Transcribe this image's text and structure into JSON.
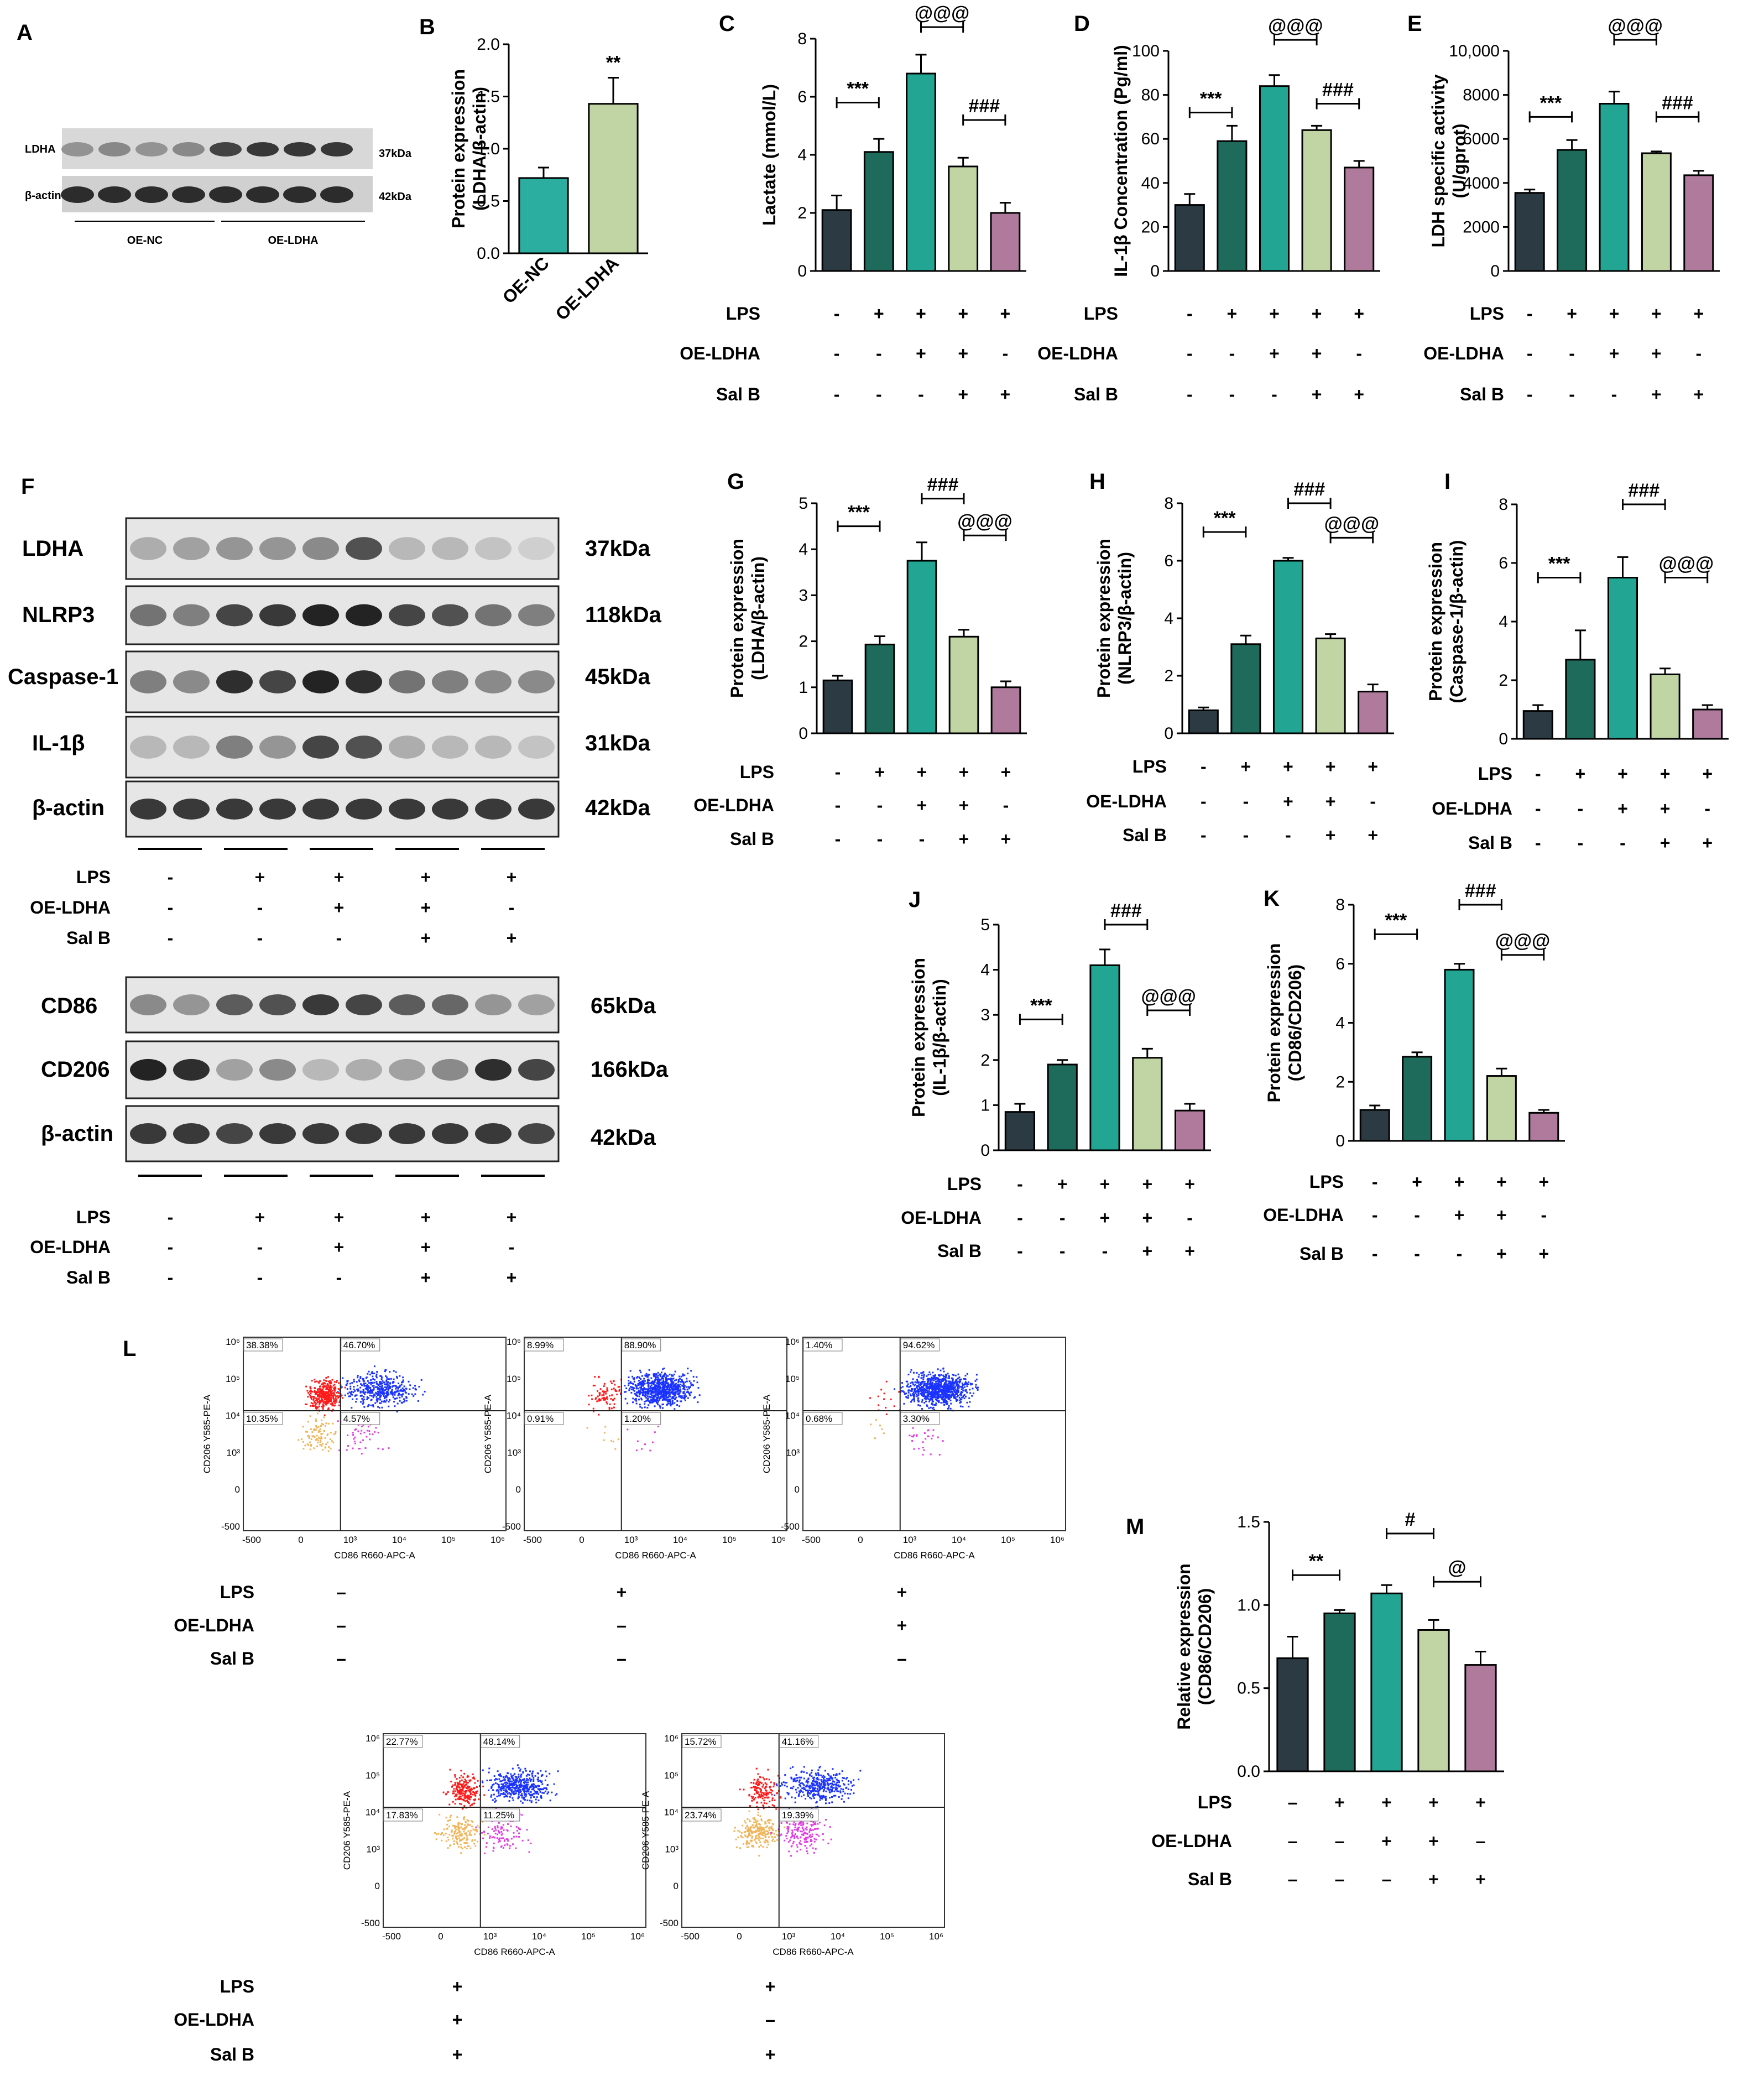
{
  "colors": {
    "group1": "#2b3a43",
    "group2": "#1e6b5c",
    "group3": "#22a592",
    "group4": "#c1d4a3",
    "group5": "#b07a9c",
    "bar_nc": "#2bada0",
    "bar_oe": "#c1d4a3",
    "red": "#ff1a1a",
    "blue": "#1a33ff",
    "orange": "#f0b45a",
    "magenta": "#e040e0"
  },
  "panel_a": {
    "letter": "A",
    "bands": [
      "LDHA",
      "β-actin"
    ],
    "sizes": [
      "37kDa",
      "42kDa"
    ],
    "groups": [
      "OE-NC",
      "OE-LDHA"
    ]
  },
  "panel_b": {
    "letter": "B",
    "significance": "**"
  },
  "panel_f": {
    "letter": "F",
    "bands_top": [
      "LDHA",
      "NLRP3",
      "Caspase-1",
      "IL-1β",
      "β-actin"
    ],
    "sizes_top": [
      "37kDa",
      "118kDa",
      "45kDa",
      "31kDa",
      "42kDa"
    ],
    "bands_bottom": [
      "CD86",
      "CD206",
      "β-actin"
    ],
    "sizes_bottom": [
      "65kDa",
      "166kDa",
      "42kDa"
    ]
  },
  "treatment_labels": [
    "LPS",
    "OE-LDHA",
    "Sal B"
  ],
  "treatment_matrix": [
    [
      "-",
      "+",
      "+",
      "+",
      "+"
    ],
    [
      "-",
      "-",
      "+",
      "+",
      "-"
    ],
    [
      "-",
      "-",
      "-",
      "+",
      "+"
    ]
  ],
  "treatment_matrix_dash": [
    [
      "–",
      "+",
      "+",
      "+",
      "+"
    ],
    [
      "–",
      "–",
      "+",
      "+",
      "–"
    ],
    [
      "–",
      "–",
      "–",
      "+",
      "+"
    ]
  ],
  "chart_data": [
    {
      "id": "B",
      "type": "bar",
      "categories": [
        "OE-NC",
        "OE-LDHA"
      ],
      "values": [
        0.72,
        1.43
      ],
      "errors": [
        0.1,
        0.25
      ],
      "ylabel": "Protein expression\n(LDHA/β-actin)",
      "ylim": [
        0,
        2.0
      ],
      "yticks": [
        "0.0",
        "0.5",
        "1.0",
        "1.5",
        "2.0"
      ],
      "significance": [
        "**"
      ]
    },
    {
      "id": "C",
      "type": "bar",
      "values": [
        2.1,
        4.1,
        6.8,
        3.6,
        2.0
      ],
      "errors": [
        0.5,
        0.45,
        0.65,
        0.3,
        0.35
      ],
      "ylabel": "Lactate (mmol/L)",
      "ylim": [
        0,
        8
      ],
      "yticks": [
        "0",
        "2",
        "4",
        "6",
        "8"
      ],
      "significance": [
        "***",
        "###",
        "@@@"
      ]
    },
    {
      "id": "D",
      "type": "bar",
      "values": [
        30,
        59,
        84,
        64,
        47
      ],
      "errors": [
        5,
        7,
        5,
        2,
        3
      ],
      "ylabel": "IL-1β Concentration (Pg/ml)",
      "ylim": [
        0,
        100
      ],
      "yticks": [
        "0",
        "20",
        "40",
        "60",
        "80",
        "100"
      ],
      "significance": [
        "***",
        "###",
        "@@@"
      ]
    },
    {
      "id": "E",
      "type": "bar",
      "values": [
        3550,
        5500,
        7600,
        5350,
        4350
      ],
      "errors": [
        150,
        450,
        550,
        80,
        200
      ],
      "ylabel": "LDH specific activity\n(U/gprot)",
      "ylim": [
        0,
        10000
      ],
      "yticks": [
        "0",
        "2000",
        "4000",
        "6000",
        "8000",
        "10,000"
      ],
      "significance": [
        "***",
        "###",
        "@@@"
      ]
    },
    {
      "id": "G",
      "type": "bar",
      "values": [
        1.15,
        1.93,
        3.75,
        2.1,
        1.0
      ],
      "errors": [
        0.1,
        0.18,
        0.4,
        0.15,
        0.13
      ],
      "ylabel": "Protein expression\n(LDHA/β-actin)",
      "ylim": [
        0,
        5
      ],
      "yticks": [
        "0",
        "1",
        "2",
        "3",
        "4",
        "5"
      ],
      "significance": [
        "***",
        "###",
        "@@@"
      ]
    },
    {
      "id": "H",
      "type": "bar",
      "values": [
        0.8,
        3.1,
        6.0,
        3.3,
        1.45
      ],
      "errors": [
        0.1,
        0.3,
        0.1,
        0.15,
        0.25
      ],
      "ylabel": "Protein expression\n(NLRP3/β-actin)",
      "ylim": [
        0,
        8
      ],
      "yticks": [
        "0",
        "2",
        "4",
        "6",
        "8"
      ],
      "significance": [
        "***",
        "###",
        "@@@"
      ]
    },
    {
      "id": "I",
      "type": "bar",
      "values": [
        0.95,
        2.7,
        5.5,
        2.2,
        1.0
      ],
      "errors": [
        0.2,
        1.0,
        0.7,
        0.2,
        0.15
      ],
      "ylabel": "Protein expression\n(Caspase-1/β-actin)",
      "ylim": [
        0,
        8
      ],
      "yticks": [
        "0",
        "2",
        "4",
        "6",
        "8"
      ],
      "significance": [
        "***",
        "###",
        "@@@"
      ]
    },
    {
      "id": "J",
      "type": "bar",
      "values": [
        0.85,
        1.9,
        4.1,
        2.05,
        0.88
      ],
      "errors": [
        0.18,
        0.1,
        0.35,
        0.2,
        0.15
      ],
      "ylabel": "Protein expression\n(IL-1β/β-actin)",
      "ylim": [
        0,
        5
      ],
      "yticks": [
        "0",
        "1",
        "2",
        "3",
        "4",
        "5"
      ],
      "significance": [
        "***",
        "###",
        "@@@"
      ]
    },
    {
      "id": "K",
      "type": "bar",
      "values": [
        1.05,
        2.85,
        5.8,
        2.2,
        0.95
      ],
      "errors": [
        0.15,
        0.15,
        0.2,
        0.25,
        0.1
      ],
      "ylabel": "Protein expression\n(CD86/CD206)",
      "ylim": [
        0,
        8
      ],
      "yticks": [
        "0",
        "2",
        "4",
        "6",
        "8"
      ],
      "significance": [
        "***",
        "###",
        "@@@"
      ]
    },
    {
      "id": "M",
      "type": "bar",
      "values": [
        0.68,
        0.95,
        1.07,
        0.85,
        0.64
      ],
      "errors": [
        0.13,
        0.02,
        0.05,
        0.06,
        0.08
      ],
      "ylabel": "Relative expression\n(CD86/CD206)",
      "ylim": [
        0,
        1.5
      ],
      "yticks": [
        "0.0",
        "0.5",
        "1.0",
        "1.5"
      ],
      "significance": [
        "**",
        "#",
        "@"
      ]
    }
  ],
  "flow": {
    "letter": "L",
    "ylabel": "CD206 Y585-PE-A",
    "xlabel": "CD86 R660-APC-A",
    "xticks": [
      "-500",
      "0",
      "10³",
      "10⁴",
      "10⁵",
      "10⁶"
    ],
    "yticks": [
      "10⁶",
      "10⁵",
      "10⁴",
      "10³",
      "0",
      "-500"
    ],
    "plots": [
      {
        "UL": "38.38%",
        "UR": "46.70%",
        "LL": "10.35%",
        "LR": "4.57%",
        "treat": [
          "–",
          "–",
          "–"
        ]
      },
      {
        "UL": "8.99%",
        "UR": "88.90%",
        "LL": "0.91%",
        "LR": "1.20%",
        "treat": [
          "+",
          "–",
          "–"
        ]
      },
      {
        "UL": "1.40%",
        "UR": "94.62%",
        "LL": "0.68%",
        "LR": "3.30%",
        "treat": [
          "+",
          "+",
          "–"
        ]
      },
      {
        "UL": "22.77%",
        "UR": "48.14%",
        "LL": "17.83%",
        "LR": "11.25%",
        "treat": [
          "+",
          "+",
          "+"
        ]
      },
      {
        "UL": "15.72%",
        "UR": "41.16%",
        "LL": "23.74%",
        "LR": "19.39%",
        "treat": [
          "+",
          "–",
          "+"
        ]
      }
    ]
  }
}
